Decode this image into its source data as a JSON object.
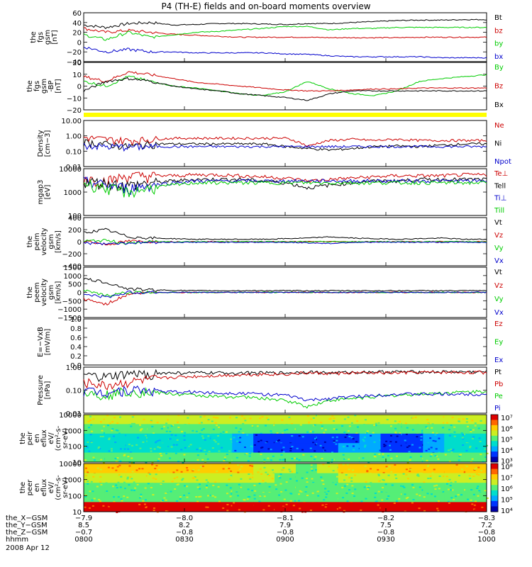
{
  "title": "P4 (TH-E) fields and on-board moments overview",
  "date": "2008 Apr 12",
  "colors": {
    "black": "#000000",
    "red": "#cc0000",
    "green": "#00cc00",
    "blue": "#0000cc",
    "yellow": "#ffff00"
  },
  "chart_data": [
    {
      "type": "line",
      "ylabel": [
        "the",
        "fgs",
        "gsm",
        "[nT]"
      ],
      "yticks": [
        "60",
        "40",
        "20",
        "0",
        "−20",
        "−40"
      ],
      "ylim": [
        -40,
        60
      ],
      "series": [
        {
          "name": "Bt",
          "color": "black",
          "values": [
            35,
            30,
            38,
            40,
            35,
            36,
            38,
            38,
            37,
            36,
            38,
            38,
            40,
            42,
            44,
            45,
            45,
            46,
            46
          ]
        },
        {
          "name": "bz",
          "color": "red",
          "values": [
            28,
            20,
            24,
            20,
            16,
            14,
            12,
            10,
            10,
            10,
            10,
            9,
            9,
            9,
            9,
            10,
            10,
            10,
            10
          ]
        },
        {
          "name": "by",
          "color": "green",
          "values": [
            15,
            5,
            20,
            10,
            15,
            20,
            22,
            25,
            28,
            32,
            32,
            25,
            28,
            28,
            30,
            30,
            30,
            30,
            30
          ]
        },
        {
          "name": "bx",
          "color": "blue",
          "values": [
            -10,
            -20,
            -15,
            -20,
            -20,
            -22,
            -22,
            -22,
            -22,
            -24,
            -25,
            -28,
            -30,
            -30,
            -30,
            -30,
            -32,
            -32,
            -32
          ]
        }
      ]
    },
    {
      "type": "line",
      "ylabel": [
        "the",
        "fgs",
        "gsm",
        "-BP",
        "[nT]"
      ],
      "yticks": [
        "20",
        "10",
        "0",
        "−10",
        "−20"
      ],
      "ylim": [
        -25,
        25
      ],
      "series": [
        {
          "name": "By",
          "color": "green",
          "values": [
            5,
            0,
            10,
            5,
            0,
            -2,
            -5,
            -8,
            -10,
            -6,
            5,
            -3,
            -8,
            -10,
            -5,
            5,
            8,
            10,
            12
          ]
        },
        {
          "name": "Bz",
          "color": "red",
          "values": [
            10,
            5,
            15,
            12,
            8,
            4,
            2,
            0,
            -2,
            -4,
            -5,
            -5,
            -4,
            -3,
            -3,
            -2,
            -2,
            -2,
            -2
          ]
        },
        {
          "name": "Bx",
          "color": "black",
          "values": [
            -5,
            5,
            8,
            5,
            0,
            -3,
            -5,
            -8,
            -10,
            -12,
            -15,
            -8,
            -5,
            -5,
            -5,
            -5,
            -5,
            -5,
            -5
          ]
        }
      ]
    },
    {
      "type": "line",
      "log": true,
      "ylabel": [
        "Density",
        "[cm−3]"
      ],
      "yticks": [
        "10.00",
        "1.00",
        "0.10",
        "0.01"
      ],
      "ylim": [
        0.01,
        10
      ],
      "series": [
        {
          "name": "Ne",
          "color": "red",
          "values": [
            0.8,
            0.6,
            0.5,
            0.6,
            0.7,
            0.7,
            0.7,
            0.7,
            0.7,
            0.7,
            0.2,
            0.5,
            0.6,
            0.5,
            0.6,
            0.5,
            0.5,
            0.5,
            0.5
          ]
        },
        {
          "name": "Ni",
          "color": "black",
          "values": [
            0.4,
            0.3,
            0.2,
            0.3,
            0.3,
            0.3,
            0.3,
            0.3,
            0.3,
            0.2,
            0.15,
            0.12,
            0.15,
            0.2,
            0.22,
            0.2,
            0.25,
            0.3,
            0.3
          ]
        },
        {
          "name": "Npot",
          "color": "blue",
          "values": [
            0.25,
            0.2,
            0.2,
            0.2,
            0.2,
            0.2,
            0.2,
            0.2,
            0.2,
            0.2,
            0.2,
            0.2,
            0.2,
            0.2,
            0.2,
            0.2,
            0.2,
            0.2,
            0.2
          ]
        }
      ]
    },
    {
      "type": "line",
      "log": true,
      "ylabel": [
        "mgap3",
        "[eV]"
      ],
      "yticks": [
        "10000",
        "1000",
        "100"
      ],
      "ylim": [
        100,
        10000
      ],
      "series": [
        {
          "name": "Te⊥",
          "color": "red",
          "values": [
            4000,
            3000,
            5000,
            5000,
            5000,
            5500,
            5500,
            5000,
            4500,
            4000,
            3000,
            3500,
            4000,
            4500,
            5000,
            5000,
            5000,
            5500,
            5500
          ]
        },
        {
          "name": "Tell",
          "color": "black",
          "values": [
            3000,
            2500,
            2000,
            2500,
            3000,
            3500,
            3500,
            3500,
            3000,
            2500,
            1500,
            2000,
            2500,
            3000,
            3000,
            3500,
            3500,
            3500,
            3500
          ]
        },
        {
          "name": "Ti⊥",
          "color": "blue",
          "values": [
            3000,
            2000,
            1500,
            2000,
            2500,
            3000,
            3000,
            3000,
            3000,
            3000,
            3000,
            3000,
            3000,
            3000,
            3000,
            3000,
            3000,
            3000,
            3000
          ]
        },
        {
          "name": "Till",
          "color": "green",
          "values": [
            2500,
            1500,
            1000,
            1500,
            2000,
            2500,
            2500,
            2500,
            2500,
            2500,
            2500,
            2500,
            2500,
            2500,
            2500,
            2500,
            2500,
            2500,
            2500
          ]
        }
      ]
    },
    {
      "type": "line",
      "ylabel": [
        "the",
        "peim",
        "velocity",
        "gsm",
        "[km/s]"
      ],
      "yticks": [
        "400",
        "200",
        "0",
        "−200",
        "−400"
      ],
      "ylim": [
        -400,
        400
      ],
      "series": [
        {
          "name": "Vt",
          "color": "black",
          "values": [
            150,
            200,
            80,
            60,
            50,
            40,
            40,
            40,
            40,
            50,
            60,
            80,
            60,
            50,
            40,
            50,
            60,
            40,
            40
          ]
        },
        {
          "name": "Vz",
          "color": "red",
          "values": [
            20,
            -50,
            10,
            0,
            0,
            0,
            0,
            0,
            0,
            0,
            0,
            0,
            0,
            0,
            0,
            0,
            0,
            0,
            0
          ]
        },
        {
          "name": "Vy",
          "color": "green",
          "values": [
            10,
            20,
            -30,
            0,
            0,
            0,
            0,
            0,
            0,
            0,
            0,
            0,
            0,
            0,
            0,
            0,
            0,
            0,
            0
          ]
        },
        {
          "name": "Vx",
          "color": "blue",
          "values": [
            -20,
            -30,
            -20,
            -10,
            -10,
            -10,
            -10,
            -10,
            -10,
            -10,
            -20,
            -30,
            -10,
            -10,
            -10,
            -10,
            -10,
            -10,
            -10
          ]
        }
      ]
    },
    {
      "type": "line",
      "ylabel": [
        "the",
        "peem",
        "velocity",
        "gsm",
        "[km/s]"
      ],
      "yticks": [
        "1500",
        "1000",
        "500",
        "0",
        "−500",
        "−1000",
        "−1500"
      ],
      "ylim": [
        -1500,
        1500
      ],
      "series": [
        {
          "name": "Vt",
          "color": "black",
          "values": [
            800,
            600,
            200,
            150,
            120,
            100,
            100,
            100,
            100,
            100,
            100,
            100,
            100,
            100,
            100,
            100,
            100,
            100,
            100
          ]
        },
        {
          "name": "Vz",
          "color": "red",
          "values": [
            -400,
            -700,
            -100,
            0,
            0,
            0,
            0,
            0,
            0,
            0,
            0,
            0,
            0,
            0,
            0,
            0,
            0,
            0,
            0
          ]
        },
        {
          "name": "Vy",
          "color": "green",
          "values": [
            100,
            -200,
            0,
            0,
            0,
            0,
            0,
            0,
            0,
            0,
            0,
            0,
            0,
            0,
            0,
            0,
            0,
            0,
            0
          ]
        },
        {
          "name": "Vx",
          "color": "blue",
          "values": [
            -100,
            -300,
            0,
            0,
            0,
            0,
            0,
            0,
            0,
            0,
            0,
            0,
            0,
            0,
            0,
            0,
            0,
            0,
            0
          ]
        }
      ]
    },
    {
      "type": "line",
      "ylabel": [
        "E=−VxB",
        "[mV/m]"
      ],
      "yticks": [
        "1.0",
        "0.8",
        "0.6",
        "0.4",
        "0.2",
        "0.0"
      ],
      "ylim": [
        0,
        1
      ],
      "series": [
        {
          "name": "Ez",
          "color": "red",
          "values": []
        },
        {
          "name": "Ey",
          "color": "green",
          "values": []
        },
        {
          "name": "Ex",
          "color": "blue",
          "values": []
        }
      ]
    },
    {
      "type": "line",
      "log": true,
      "ylabel": [
        "Pressure",
        "[nPa]"
      ],
      "yticks": [
        "1.00",
        "0.10",
        "0.01"
      ],
      "ylim": [
        0.01,
        1.5
      ],
      "series": [
        {
          "name": "Pt",
          "color": "black",
          "values": [
            0.6,
            0.5,
            0.7,
            0.75,
            0.8,
            0.8,
            0.8,
            0.8,
            0.8,
            0.8,
            0.9,
            0.8,
            0.85,
            0.9,
            0.9,
            0.9,
            0.9,
            0.9,
            0.9
          ]
        },
        {
          "name": "Pb",
          "color": "red",
          "values": [
            0.3,
            0.2,
            0.3,
            0.4,
            0.5,
            0.55,
            0.6,
            0.65,
            0.7,
            0.7,
            0.8,
            0.75,
            0.8,
            0.8,
            0.8,
            0.85,
            0.85,
            0.85,
            0.85
          ]
        },
        {
          "name": "Pe",
          "color": "green",
          "values": [
            0.1,
            0.08,
            0.12,
            0.1,
            0.08,
            0.07,
            0.06,
            0.06,
            0.05,
            0.04,
            0.02,
            0.04,
            0.05,
            0.06,
            0.07,
            0.08,
            0.09,
            0.1,
            0.11
          ]
        },
        {
          "name": "Pi",
          "color": "blue",
          "values": [
            0.12,
            0.1,
            0.14,
            0.12,
            0.1,
            0.1,
            0.09,
            0.09,
            0.08,
            0.07,
            0.04,
            0.05,
            0.06,
            0.07,
            0.08,
            0.08,
            0.08,
            0.08,
            0.08
          ]
        }
      ]
    },
    {
      "type": "heatmap",
      "ylabel": [
        "the",
        "peir",
        "en",
        "eflux",
        "eV/",
        "(cm²-s-",
        "sr-eV)"
      ],
      "yticks": [
        "10000",
        "1000",
        "100",
        "10"
      ],
      "colorbar": [
        "10⁷",
        "10⁶",
        "10⁵",
        "10⁴",
        "10³"
      ],
      "values": [
        [
          5,
          5,
          5,
          5,
          5,
          5,
          5,
          5,
          5,
          5,
          5,
          5,
          5,
          5,
          5,
          5,
          5,
          5,
          5
        ],
        [
          4,
          4,
          4,
          4,
          4,
          4,
          4,
          4,
          4,
          4,
          4,
          4,
          4,
          4,
          4,
          4,
          4,
          4,
          4
        ],
        [
          3,
          3,
          3,
          3,
          3,
          3,
          3,
          2,
          1,
          1,
          1,
          1,
          1,
          2,
          1,
          1,
          2,
          3,
          3
        ],
        [
          3,
          3,
          3,
          3,
          3,
          3,
          3,
          2,
          1,
          1,
          1,
          1,
          2,
          2,
          1,
          1,
          2,
          3,
          3
        ],
        [
          4,
          4,
          4,
          4,
          4,
          4,
          4,
          4,
          4,
          4,
          4,
          4,
          4,
          4,
          4,
          4,
          4,
          4,
          4
        ]
      ]
    },
    {
      "type": "heatmap",
      "ylabel": [
        "the",
        "peer",
        "en",
        "eflux",
        "eV/",
        "(cm²-s-",
        "sr-eV)"
      ],
      "yticks": [
        "10000",
        "1000",
        "100",
        "10"
      ],
      "colorbar": [
        "10⁸",
        "10⁷",
        "10⁶",
        "10⁵",
        "10⁴"
      ],
      "values": [
        [
          6,
          6,
          6,
          6,
          6,
          6,
          6,
          6,
          5,
          5,
          4,
          5,
          6,
          6,
          6,
          6,
          6,
          6,
          6
        ],
        [
          5,
          5,
          5,
          5,
          5,
          5,
          5,
          5,
          5,
          4,
          4,
          4,
          5,
          5,
          5,
          5,
          5,
          5,
          5
        ],
        [
          4,
          4,
          4,
          4,
          4,
          4,
          4,
          4,
          4,
          4,
          4,
          4,
          4,
          4,
          4,
          4,
          4,
          4,
          4
        ],
        [
          4,
          4,
          4,
          4,
          4,
          4,
          4,
          4,
          4,
          4,
          4,
          4,
          4,
          4,
          4,
          4,
          4,
          4,
          4
        ],
        [
          8,
          8,
          8,
          8,
          8,
          8,
          8,
          8,
          8,
          8,
          8,
          8,
          8,
          8,
          8,
          8,
          8,
          8,
          8
        ]
      ]
    }
  ],
  "xaxis": {
    "rows": [
      {
        "label": "the_X−GSM",
        "ticks": [
          "−7.9",
          "−8.0",
          "−8.1",
          "−8.2",
          "−8.3"
        ]
      },
      {
        "label": "the_Y−GSM",
        "ticks": [
          "8.5",
          "8.2",
          "7.9",
          "7.5",
          "7.2"
        ]
      },
      {
        "label": "the_Z−GSM",
        "ticks": [
          "−0.7",
          "−0.8",
          "−0.8",
          "−0.8",
          "−0.8"
        ]
      },
      {
        "label": "hhmm",
        "ticks": [
          "0800",
          "0830",
          "0900",
          "0930",
          "1000"
        ]
      }
    ]
  }
}
